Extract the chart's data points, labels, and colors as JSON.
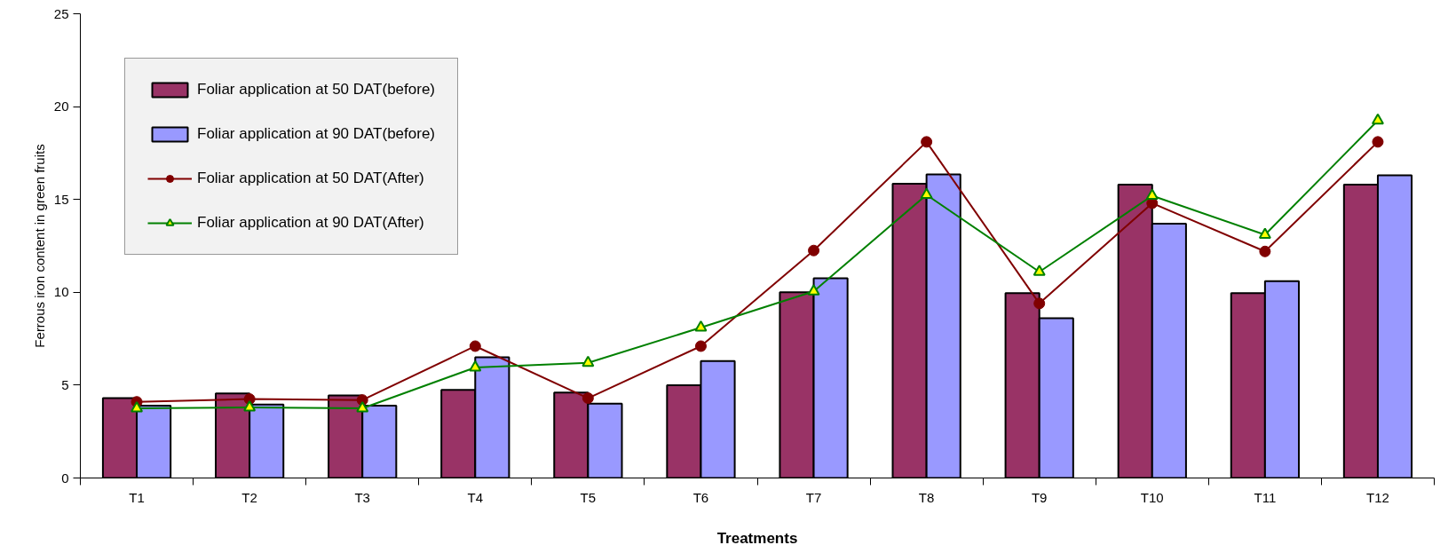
{
  "chart_data": {
    "type": "bar",
    "xlabel": "Treatments",
    "ylabel": "Ferrous iron content in green fruits",
    "categories": [
      "T1",
      "T2",
      "T3",
      "T4",
      "T5",
      "T6",
      "T7",
      "T8",
      "T9",
      "T10",
      "T11",
      "T12"
    ],
    "series": [
      {
        "name": "Foliar application at 50 DAT(before)",
        "color": "#993366",
        "values": [
          4.3,
          4.55,
          4.45,
          4.75,
          4.6,
          5.0,
          10.0,
          15.85,
          9.95,
          15.8,
          9.95,
          15.8
        ]
      },
      {
        "name": "Foliar application at 90 DAT(before)",
        "color": "#9999ff",
        "values": [
          3.9,
          3.95,
          3.9,
          6.5,
          4.0,
          6.3,
          10.75,
          16.35,
          8.6,
          13.7,
          10.6,
          16.3
        ]
      },
      {
        "name": "Foliar application at 50 DAT(After)",
        "type": "line",
        "color": "#800000",
        "marker": "circle",
        "values": [
          4.1,
          4.25,
          4.2,
          7.1,
          4.3,
          7.1,
          12.25,
          18.1,
          9.4,
          14.8,
          12.2,
          18.1
        ]
      },
      {
        "name": "Foliar application at 90 DAT(After)",
        "type": "line",
        "color": "#008000",
        "marker": "triangle",
        "values": [
          3.75,
          3.8,
          3.75,
          5.95,
          6.2,
          8.1,
          10.05,
          15.25,
          11.1,
          15.2,
          13.1,
          19.25
        ]
      }
    ],
    "ylim": [
      0,
      25
    ],
    "yticks": [
      0,
      5,
      10,
      15,
      20,
      25
    ],
    "grid": false,
    "legend": "top left"
  }
}
